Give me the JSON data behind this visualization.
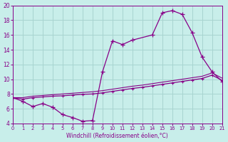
{
  "xlabel": "Windchill (Refroidissement éolien,°C)",
  "background_color": "#c8eeea",
  "grid_color": "#a8d4d0",
  "line_color": "#880088",
  "spine_color": "#880088",
  "xlim": [
    0,
    21
  ],
  "ylim": [
    4,
    20
  ],
  "xticks": [
    0,
    1,
    2,
    3,
    4,
    5,
    6,
    7,
    8,
    9,
    10,
    11,
    12,
    13,
    14,
    15,
    16,
    17,
    18,
    19,
    20,
    21
  ],
  "yticks": [
    4,
    6,
    8,
    10,
    12,
    14,
    16,
    18,
    20
  ],
  "s1_x": [
    0,
    1,
    2,
    3,
    4,
    5,
    6,
    7,
    8,
    9,
    10,
    11,
    12,
    14,
    15,
    16,
    17,
    18,
    19,
    20,
    21
  ],
  "s1_y": [
    7.5,
    7.0,
    6.3,
    6.7,
    6.2,
    5.2,
    4.8,
    4.3,
    4.4,
    11.0,
    15.2,
    14.7,
    15.3,
    16.0,
    19.0,
    19.3,
    18.8,
    16.3,
    13.0,
    11.0,
    9.7
  ],
  "s2_x": [
    0,
    1,
    2,
    3,
    4,
    5,
    6,
    7,
    8,
    9,
    10,
    11,
    12,
    13,
    14,
    15,
    16,
    17,
    18,
    19,
    20,
    21
  ],
  "s2_y": [
    7.5,
    7.3,
    7.5,
    7.6,
    7.7,
    7.75,
    7.85,
    7.95,
    8.0,
    8.15,
    8.35,
    8.55,
    8.75,
    8.9,
    9.1,
    9.3,
    9.5,
    9.7,
    9.9,
    10.1,
    10.55,
    9.85
  ],
  "s3_x": [
    0,
    1,
    2,
    3,
    4,
    5,
    6,
    7,
    8,
    9,
    10,
    11,
    12,
    13,
    14,
    15,
    16,
    17,
    18,
    19,
    20,
    21
  ],
  "s3_y": [
    7.5,
    7.5,
    7.7,
    7.8,
    7.9,
    8.0,
    8.1,
    8.2,
    8.3,
    8.45,
    8.65,
    8.85,
    9.05,
    9.2,
    9.4,
    9.6,
    9.8,
    10.0,
    10.2,
    10.4,
    10.85,
    10.15
  ]
}
